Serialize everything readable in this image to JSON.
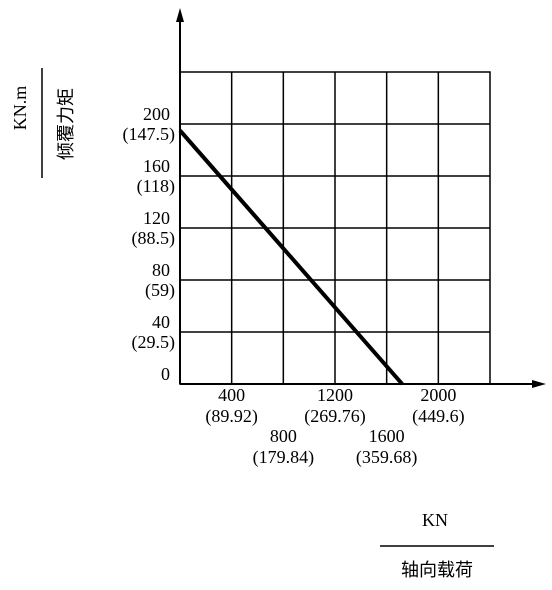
{
  "chart_data": {
    "type": "line",
    "y_label_unit": "KN.m",
    "y_label": "倾覆力矩",
    "x_label_unit": "KN",
    "x_label": "轴向载荷",
    "xlim": [
      0,
      2400
    ],
    "ylim": [
      0,
      240
    ],
    "xticks": [
      400,
      800,
      1200,
      1600,
      2000
    ],
    "xtick_sublabels": [
      "(89.92)",
      "(179.84)",
      "(269.76)",
      "(359.68)",
      "(449.6)"
    ],
    "yticks": [
      0,
      40,
      80,
      120,
      160,
      200
    ],
    "ytick_sublabels": [
      null,
      "(29.5)",
      "(59)",
      "(88.5)",
      "(118)",
      "(147.5)"
    ],
    "grid": true,
    "x": [
      0,
      1720
    ],
    "series": [
      {
        "color": "#000000",
        "values": [
          195,
          0
        ]
      }
    ]
  }
}
